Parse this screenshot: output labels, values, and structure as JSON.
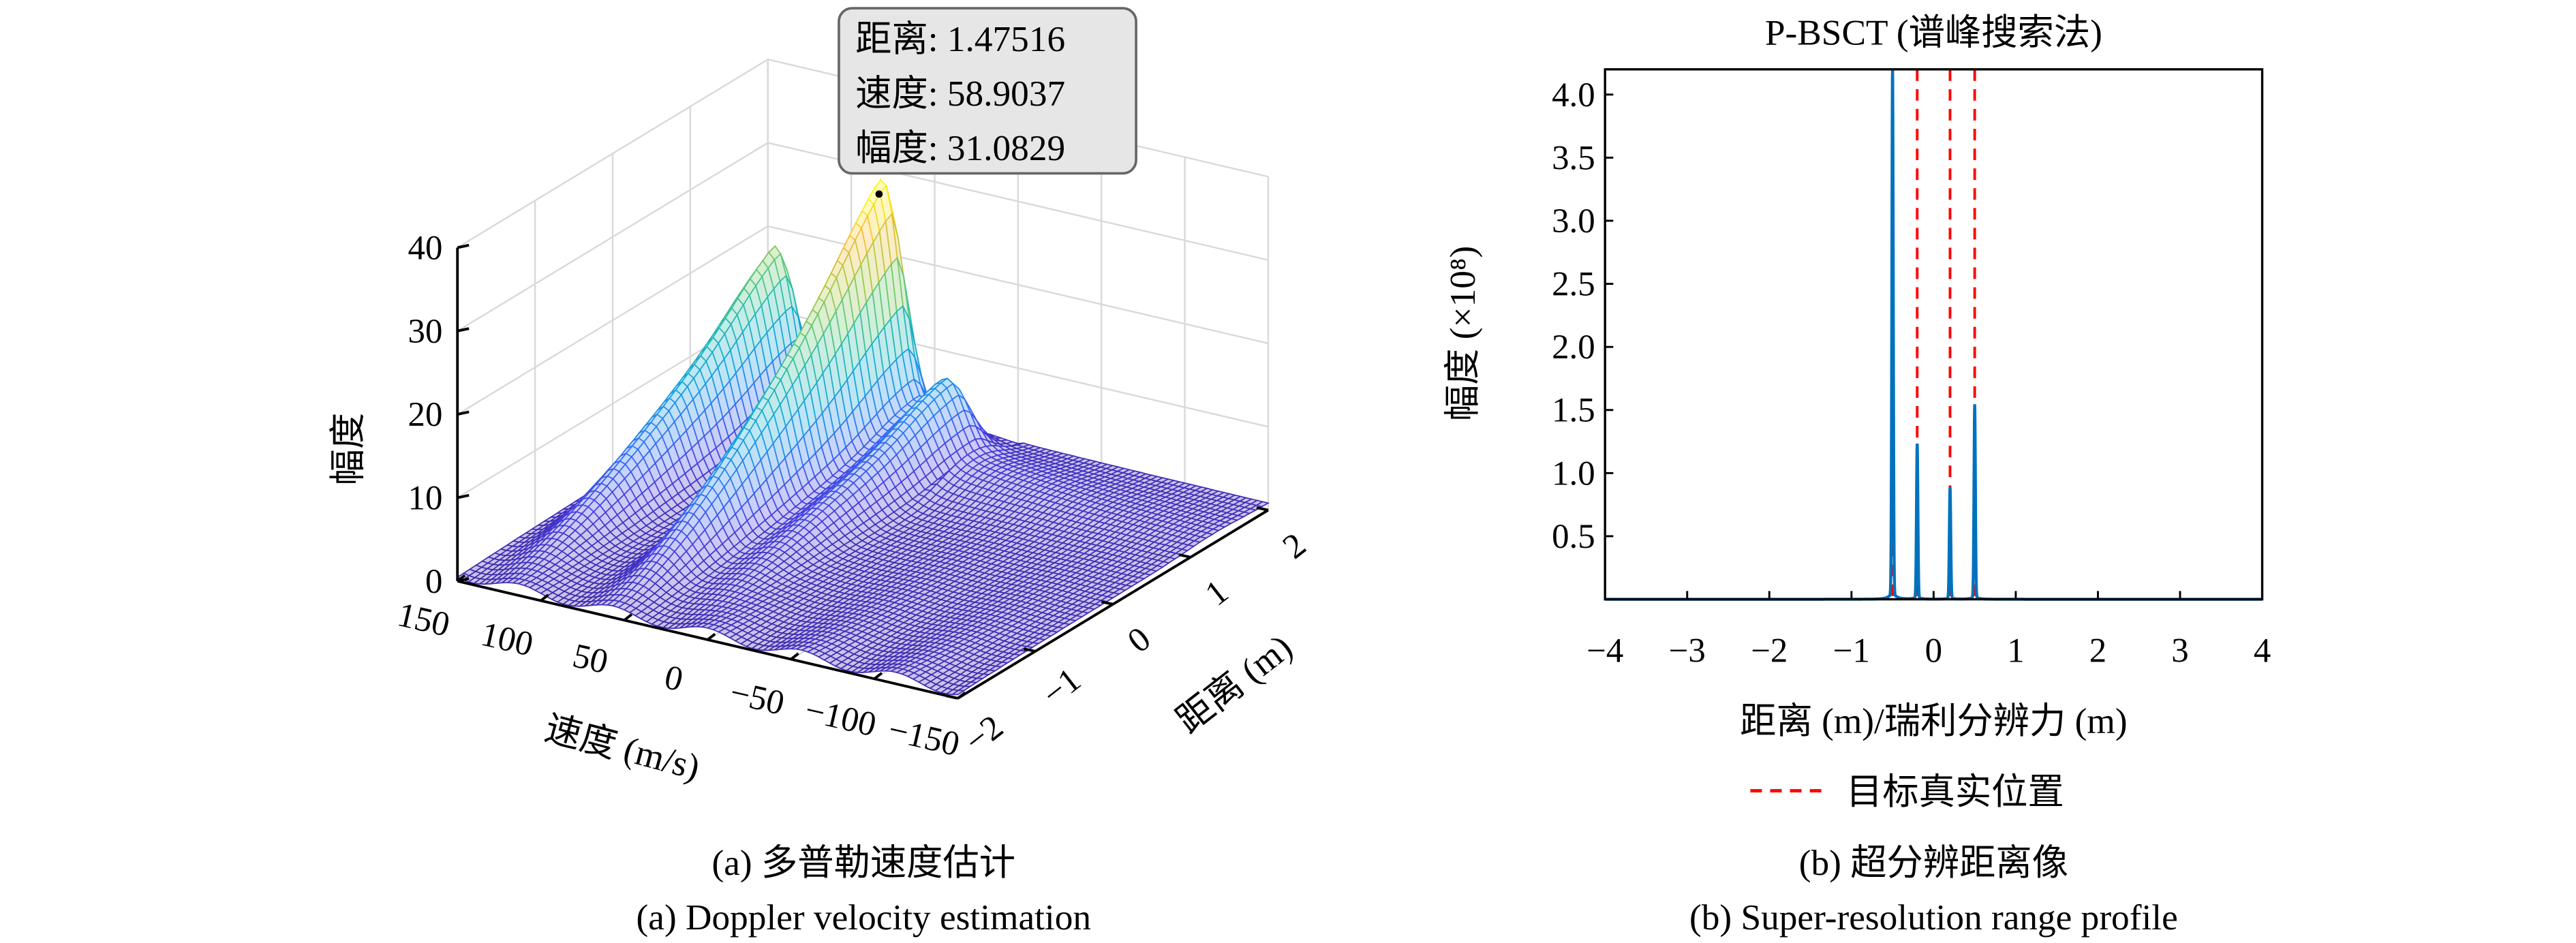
{
  "captions": {
    "a_zh": "(a) 多普勒速度估计",
    "a_en": "(a) Doppler velocity estimation",
    "b_zh": "(b) 超分辨距离像",
    "b_en": "(b) Super-resolution range profile"
  },
  "chart_data": [
    {
      "type": "surface",
      "style": "mesh",
      "colormap": "parula",
      "xlabel": "速度 (m/s)",
      "ylabel": "距离 (m)",
      "zlabel": "幅度",
      "xlim": [
        -150,
        150
      ],
      "ylim": [
        -2,
        2
      ],
      "zlim": [
        0,
        40
      ],
      "xticks": [
        150,
        100,
        50,
        0,
        -50,
        -100,
        -150
      ],
      "yticks": [
        -2,
        -1,
        0,
        1,
        2
      ],
      "zticks": [
        0,
        10,
        20,
        30,
        40
      ],
      "grid": true,
      "ridges": [
        {
          "velocity": 123,
          "amplitude": 20
        },
        {
          "velocity": 58.9,
          "amplitude": 31.1
        },
        {
          "velocity": 20,
          "amplitude": 9
        }
      ],
      "datatip": {
        "lines": [
          "距离: 1.47516",
          "速度: 58.9037",
          "幅度: 31.0829"
        ],
        "range": 1.47516,
        "velocity": 58.9037,
        "amplitude": 31.0829
      }
    },
    {
      "type": "line",
      "title": "P-BSCT (谱峰搜索法)",
      "xlabel": "距离 (m)/瑞利分辨力 (m)",
      "ylabel": "幅度 (×10⁸)",
      "xlim": [
        -4,
        4
      ],
      "ylim": [
        0,
        4.2
      ],
      "xticks": [
        -4,
        -3,
        -2,
        -1,
        0,
        1,
        2,
        3,
        4
      ],
      "yticks": [
        0.5,
        1.0,
        1.5,
        2.0,
        2.5,
        3.0,
        3.5,
        4.0
      ],
      "series_color": "#0072bd",
      "peaks": [
        {
          "x": -0.5,
          "y": 4.2
        },
        {
          "x": -0.2,
          "y": 1.22
        },
        {
          "x": 0.2,
          "y": 0.88
        },
        {
          "x": 0.5,
          "y": 1.53
        }
      ],
      "true_positions": [
        -0.5,
        -0.2,
        0.2,
        0.5
      ],
      "true_position_color": "#ff0000",
      "legend": {
        "label": "目标真实位置",
        "placement": "below"
      }
    }
  ]
}
